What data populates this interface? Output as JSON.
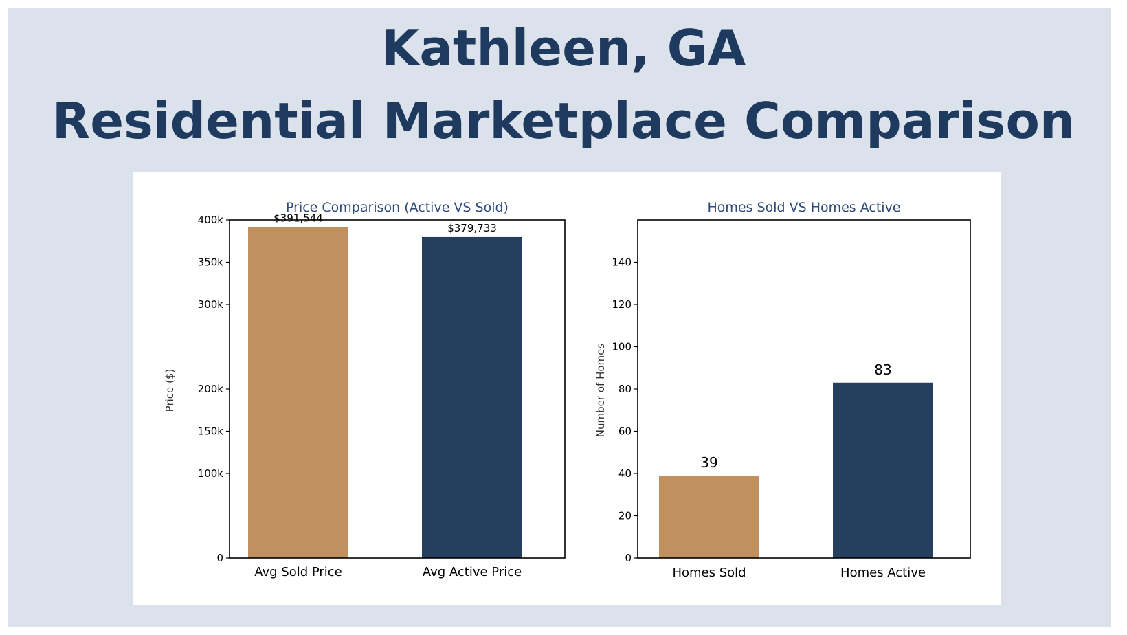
{
  "page": {
    "title_line1": "Kathleen, GA",
    "title_line2": "Residential Marketplace Comparison",
    "background_color": "#dce2ec",
    "title_color": "#1f3a5f"
  },
  "chart_data": [
    {
      "type": "bar",
      "title": "Price Comparison (Active VS Sold)",
      "xlabel": "",
      "ylabel": "Price ($)",
      "categories": [
        "Avg Sold Price",
        "Avg Active Price"
      ],
      "values": [
        391544,
        379733
      ],
      "value_labels": [
        "$391,544",
        "$379,733"
      ],
      "colors": [
        "#c0905e",
        "#253f5e"
      ],
      "ylim": [
        0,
        400000
      ],
      "y_ticks": [
        {
          "value": 0,
          "label": "0"
        },
        {
          "value": 100000,
          "label": "100k"
        },
        {
          "value": 150000,
          "label": "150k"
        },
        {
          "value": 200000,
          "label": "200k"
        },
        {
          "value": 300000,
          "label": "300k"
        },
        {
          "value": 350000,
          "label": "350k"
        },
        {
          "value": 400000,
          "label": "400k"
        }
      ],
      "grid": false,
      "legend": "none"
    },
    {
      "type": "bar",
      "title": "Homes Sold VS Homes Active",
      "xlabel": "",
      "ylabel": "Number of Homes",
      "categories": [
        "Homes Sold",
        "Homes Active"
      ],
      "values": [
        39,
        83
      ],
      "value_labels": [
        "39",
        "83"
      ],
      "colors": [
        "#c0905e",
        "#253f5e"
      ],
      "ylim": [
        0,
        160
      ],
      "y_ticks": [
        {
          "value": 0,
          "label": "0"
        },
        {
          "value": 20,
          "label": "20"
        },
        {
          "value": 40,
          "label": "40"
        },
        {
          "value": 60,
          "label": "60"
        },
        {
          "value": 80,
          "label": "80"
        },
        {
          "value": 100,
          "label": "100"
        },
        {
          "value": 120,
          "label": "120"
        },
        {
          "value": 140,
          "label": "140"
        }
      ],
      "grid": false,
      "legend": "none"
    }
  ]
}
